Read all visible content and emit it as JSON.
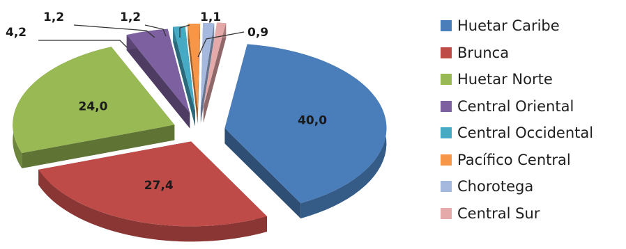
{
  "chart_data": {
    "type": "pie",
    "title": "",
    "categories": [
      "Huetar Caribe",
      "Brunca",
      "Huetar Norte",
      "Central Oriental",
      "Central Occidental",
      "Pacífico Central",
      "Chorotega",
      "Central Sur"
    ],
    "values": [
      40.0,
      27.4,
      24.0,
      4.2,
      1.2,
      1.2,
      1.1,
      0.9
    ],
    "value_labels": [
      "40,0",
      "27,4",
      "24,0",
      "4,2",
      "1,2",
      "1,2",
      "1,1",
      "0,9"
    ],
    "colors": [
      "#4a7ebb",
      "#be4b48",
      "#98b954",
      "#7d60a0",
      "#46aac5",
      "#f79646",
      "#a5b9de",
      "#e6a9a9"
    ],
    "style": "3d-exploded",
    "legend_position": "right"
  }
}
